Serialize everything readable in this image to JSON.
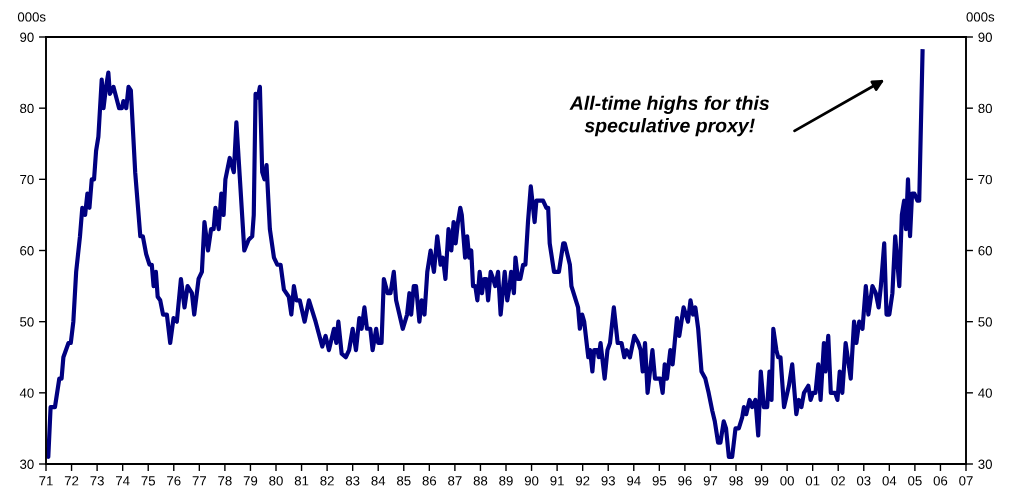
{
  "chart_data": {
    "type": "line",
    "ylabel": "000s",
    "y2label": "000s",
    "annotations": [
      "All-time highs for this\nspeculative proxy!"
    ],
    "xlim": [
      1971,
      2007
    ],
    "ylim": [
      30,
      90
    ],
    "y2lim": [
      30,
      90
    ],
    "yticks": [
      30,
      40,
      50,
      60,
      70,
      80,
      90
    ],
    "y2ticks": [
      30,
      40,
      50,
      60,
      70,
      80,
      90
    ],
    "xticks": [
      {
        "value": 1971,
        "label": "71"
      },
      {
        "value": 1972,
        "label": "72"
      },
      {
        "value": 1973,
        "label": "73"
      },
      {
        "value": 1974,
        "label": "74"
      },
      {
        "value": 1975,
        "label": "75"
      },
      {
        "value": 1976,
        "label": "76"
      },
      {
        "value": 1977,
        "label": "77"
      },
      {
        "value": 1978,
        "label": "78"
      },
      {
        "value": 1979,
        "label": "79"
      },
      {
        "value": 1980,
        "label": "80"
      },
      {
        "value": 1981,
        "label": "81"
      },
      {
        "value": 1982,
        "label": "82"
      },
      {
        "value": 1983,
        "label": "83"
      },
      {
        "value": 1984,
        "label": "84"
      },
      {
        "value": 1985,
        "label": "85"
      },
      {
        "value": 1986,
        "label": "86"
      },
      {
        "value": 1987,
        "label": "87"
      },
      {
        "value": 1988,
        "label": "88"
      },
      {
        "value": 1989,
        "label": "89"
      },
      {
        "value": 1990,
        "label": "90"
      },
      {
        "value": 1991,
        "label": "91"
      },
      {
        "value": 1992,
        "label": "92"
      },
      {
        "value": 1993,
        "label": "93"
      },
      {
        "value": 1994,
        "label": "94"
      },
      {
        "value": 1995,
        "label": "95"
      },
      {
        "value": 1996,
        "label": "96"
      },
      {
        "value": 1997,
        "label": "97"
      },
      {
        "value": 1998,
        "label": "98"
      },
      {
        "value": 1999,
        "label": "99"
      },
      {
        "value": 2000,
        "label": "00"
      },
      {
        "value": 2001,
        "label": "01"
      },
      {
        "value": 2002,
        "label": "02"
      },
      {
        "value": 2003,
        "label": "03"
      },
      {
        "value": 2004,
        "label": "04"
      },
      {
        "value": 2005,
        "label": "05"
      },
      {
        "value": 2006,
        "label": "06"
      },
      {
        "value": 2007,
        "label": "07"
      }
    ],
    "grid": false,
    "legend": false,
    "marker": "none",
    "line_style": "solid",
    "series": [
      {
        "color": "#000080",
        "x": [
          1971.0,
          1971.09,
          1971.18,
          1971.35,
          1971.52,
          1971.61,
          1971.68,
          1971.88,
          1971.97,
          1972.07,
          1972.18,
          1972.33,
          1972.42,
          1972.53,
          1972.62,
          1972.7,
          1972.79,
          1972.88,
          1972.96,
          1973.05,
          1973.18,
          1973.25,
          1973.35,
          1973.44,
          1973.5,
          1973.64,
          1973.86,
          1973.97,
          1974.03,
          1974.14,
          1974.23,
          1974.32,
          1974.49,
          1974.69,
          1974.79,
          1974.92,
          1975.05,
          1975.14,
          1975.21,
          1975.3,
          1975.37,
          1975.47,
          1975.58,
          1975.73,
          1975.86,
          1975.99,
          1976.12,
          1976.28,
          1976.42,
          1976.54,
          1976.71,
          1976.8,
          1976.97,
          1977.1,
          1977.2,
          1977.34,
          1977.46,
          1977.56,
          1977.63,
          1977.76,
          1977.86,
          1977.95,
          1978.02,
          1978.19,
          1978.35,
          1978.45,
          1978.58,
          1978.76,
          1978.93,
          1979.07,
          1979.13,
          1979.2,
          1979.29,
          1979.37,
          1979.46,
          1979.55,
          1979.63,
          1979.76,
          1979.92,
          1980.05,
          1980.18,
          1980.31,
          1980.5,
          1980.6,
          1980.7,
          1980.8,
          1980.93,
          1981.12,
          1981.29,
          1981.55,
          1981.81,
          1981.94,
          1982.07,
          1982.27,
          1982.36,
          1982.44,
          1982.57,
          1982.73,
          1982.86,
          1983.0,
          1983.13,
          1983.26,
          1983.35,
          1983.46,
          1983.56,
          1983.69,
          1983.78,
          1983.92,
          1984.0,
          1984.13,
          1984.22,
          1984.37,
          1984.48,
          1984.61,
          1984.7,
          1984.96,
          1985.13,
          1985.22,
          1985.29,
          1985.39,
          1985.48,
          1985.61,
          1985.7,
          1985.81,
          1985.92,
          1986.05,
          1986.18,
          1986.31,
          1986.44,
          1986.53,
          1986.63,
          1986.75,
          1986.86,
          1986.95,
          1987.03,
          1987.12,
          1987.21,
          1987.27,
          1987.4,
          1987.48,
          1987.56,
          1987.64,
          1987.71,
          1987.8,
          1987.88,
          1987.97,
          1988.06,
          1988.14,
          1988.23,
          1988.3,
          1988.4,
          1988.5,
          1988.58,
          1988.69,
          1988.79,
          1988.95,
          1989.05,
          1989.14,
          1989.2,
          1989.31,
          1989.37,
          1989.47,
          1989.56,
          1989.67,
          1989.76,
          1989.86,
          1989.97,
          1990.06,
          1990.12,
          1990.19,
          1990.45,
          1990.58,
          1990.65,
          1990.71,
          1990.88,
          1991.07,
          1991.24,
          1991.3,
          1991.5,
          1991.56,
          1991.82,
          1991.89,
          1991.98,
          1992.06,
          1992.22,
          1992.29,
          1992.38,
          1992.45,
          1992.58,
          1992.63,
          1992.7,
          1992.86,
          1992.97,
          1993.07,
          1993.22,
          1993.37,
          1993.52,
          1993.63,
          1993.72,
          1993.85,
          1994.02,
          1994.18,
          1994.27,
          1994.35,
          1994.44,
          1994.54,
          1994.73,
          1994.83,
          1995.04,
          1995.13,
          1995.21,
          1995.3,
          1995.43,
          1995.52,
          1995.6,
          1995.69,
          1995.78,
          1995.95,
          1996.12,
          1996.22,
          1996.32,
          1996.41,
          1996.52,
          1996.65,
          1996.8,
          1996.93,
          1997.07,
          1997.17,
          1997.3,
          1997.39,
          1997.52,
          1997.61,
          1997.72,
          1997.85,
          1997.98,
          1998.11,
          1998.24,
          1998.31,
          1998.4,
          1998.53,
          1998.63,
          1998.76,
          1998.87,
          1998.97,
          1999.09,
          1999.22,
          1999.31,
          1999.39,
          1999.46,
          1999.58,
          1999.65,
          1999.74,
          1999.88,
          2000.07,
          2000.2,
          2000.36,
          2000.46,
          2000.56,
          2000.66,
          2000.83,
          2000.92,
          2001.01,
          2001.11,
          2001.22,
          2001.31,
          2001.44,
          2001.5,
          2001.61,
          2001.71,
          2001.88,
          2001.97,
          2002.06,
          2002.16,
          2002.29,
          2002.49,
          2002.62,
          2002.71,
          2002.82,
          2002.95,
          2003.08,
          2003.18,
          2003.34,
          2003.47,
          2003.58,
          2003.67,
          2003.8,
          2003.89,
          2004.0,
          2004.12,
          2004.23,
          2004.39,
          2004.49,
          2004.58,
          2004.65,
          2004.73,
          2004.81,
          2004.89,
          2004.98,
          2005.1,
          2005.17,
          2005.3
        ],
        "values": [
          32,
          31,
          38,
          38,
          42,
          42,
          45,
          47,
          47,
          50,
          57,
          62,
          66,
          65,
          68,
          66,
          70,
          70,
          74,
          76,
          84,
          80,
          83,
          85,
          82,
          83,
          80,
          80,
          81,
          80,
          83,
          82.5,
          71,
          62,
          62,
          59.5,
          58,
          58,
          55,
          57,
          53.5,
          53,
          51,
          51,
          47,
          50.5,
          50,
          56,
          52,
          55,
          54,
          51,
          56,
          57,
          64,
          60,
          63,
          63,
          66,
          63,
          68,
          65,
          70,
          73,
          71,
          78,
          70.5,
          60,
          61.5,
          62,
          65,
          82,
          81.5,
          83,
          71,
          70,
          72,
          63,
          59,
          58,
          58,
          54.5,
          53.5,
          51,
          55,
          53,
          53,
          50,
          53,
          50,
          46.5,
          48,
          46,
          49,
          47,
          50,
          45.5,
          45,
          46,
          49,
          46,
          50.5,
          49,
          52,
          49,
          49,
          46,
          49,
          47,
          47,
          56,
          54,
          54,
          57,
          53,
          49,
          51,
          54,
          51,
          55,
          55,
          50,
          53,
          51,
          57,
          60,
          57,
          62,
          58,
          59,
          56,
          63,
          60,
          64,
          61,
          64,
          66,
          65,
          59,
          62,
          59,
          60,
          55,
          55,
          53,
          57,
          54,
          56,
          56,
          53,
          57,
          56,
          55,
          57,
          51,
          57,
          53,
          55,
          57,
          54,
          59,
          56,
          56,
          58,
          58,
          64,
          69,
          66,
          64,
          67,
          67,
          66,
          66,
          61,
          57,
          57,
          61,
          61,
          58,
          55,
          52,
          49,
          51,
          50,
          45,
          46,
          43,
          46,
          46,
          45,
          47,
          42,
          46,
          47,
          52,
          47,
          47,
          45,
          46,
          45,
          48,
          47,
          46,
          43,
          47,
          40,
          46,
          42,
          42,
          40,
          44,
          42,
          46,
          44,
          47,
          50.5,
          48,
          52,
          50,
          53,
          51,
          52,
          49,
          43,
          42,
          40,
          37.5,
          36,
          33,
          33,
          36,
          35,
          31,
          31,
          35,
          35,
          36.5,
          38,
          37,
          39,
          38,
          39,
          34,
          43,
          38,
          38,
          43,
          39,
          49,
          46,
          45,
          45,
          38,
          41,
          44,
          37,
          39,
          38,
          40,
          41,
          39,
          40,
          40,
          44,
          39,
          47,
          43,
          48,
          40,
          40,
          39,
          43,
          40,
          47,
          42,
          50,
          47,
          50,
          49,
          55,
          51,
          55,
          54,
          52,
          55,
          61,
          51,
          51,
          54,
          62,
          55,
          65,
          67,
          63,
          70,
          62,
          68,
          68,
          67,
          67,
          88
        ]
      }
    ]
  }
}
